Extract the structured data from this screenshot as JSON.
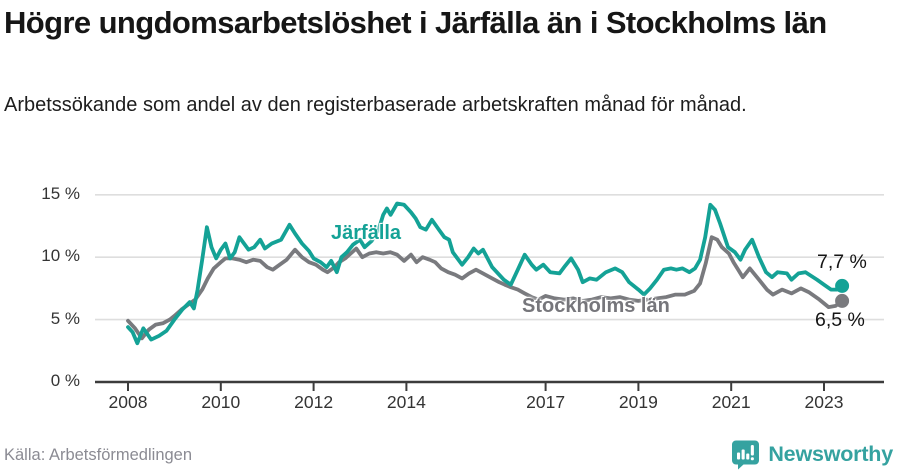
{
  "header": {
    "title": "Högre ungdomsarbetslöshet i Järfälla än i Stockholms län",
    "subtitle": "Arbetssökande som andel av den registerbaserade arbetskraften månad för månad."
  },
  "footer": {
    "source": "Källa: Arbetsförmedlingen",
    "logo_text": "Newsworthy",
    "logo_color": "#35a2a0"
  },
  "icons": {
    "logo_icon": "newsworthy-speech-bubble-bar-chart-icon"
  },
  "chart_data": {
    "type": "line",
    "title": "Högre ungdomsarbetslöshet i Järfälla än i Stockholms län",
    "unit": "%",
    "grid": "horizontal",
    "grid_color": "#dedede",
    "axis_color": "#3c3c3c",
    "x_axis": {
      "ticks": [
        2008,
        2010,
        2012,
        2014,
        2017,
        2019,
        2021,
        2023
      ],
      "range": [
        2007.3,
        2023.9
      ]
    },
    "y_axis": {
      "ticks": [
        0,
        5,
        10,
        15
      ],
      "tick_labels": [
        "0 %",
        "5 %",
        "10 %",
        "15 %"
      ],
      "range": [
        0,
        15.8
      ]
    },
    "series": [
      {
        "name": "Stockholms län",
        "color": "#797a7e",
        "end_label": "6,5 %",
        "points": [
          [
            2008.0,
            4.9
          ],
          [
            2008.15,
            4.3
          ],
          [
            2008.3,
            3.5
          ],
          [
            2008.45,
            4.2
          ],
          [
            2008.6,
            4.6
          ],
          [
            2008.75,
            4.7
          ],
          [
            2008.9,
            5.0
          ],
          [
            2009.0,
            5.3
          ],
          [
            2009.15,
            5.8
          ],
          [
            2009.3,
            6.2
          ],
          [
            2009.45,
            6.6
          ],
          [
            2009.6,
            7.4
          ],
          [
            2009.72,
            8.3
          ],
          [
            2009.85,
            9.1
          ],
          [
            2010.0,
            9.6
          ],
          [
            2010.1,
            9.9
          ],
          [
            2010.25,
            9.9
          ],
          [
            2010.4,
            9.8
          ],
          [
            2010.55,
            9.6
          ],
          [
            2010.7,
            9.8
          ],
          [
            2010.85,
            9.7
          ],
          [
            2011.0,
            9.2
          ],
          [
            2011.12,
            9.0
          ],
          [
            2011.27,
            9.4
          ],
          [
            2011.42,
            9.8
          ],
          [
            2011.6,
            10.6
          ],
          [
            2011.75,
            10.0
          ],
          [
            2011.9,
            9.6
          ],
          [
            2012.05,
            9.4
          ],
          [
            2012.2,
            9.0
          ],
          [
            2012.3,
            8.8
          ],
          [
            2012.45,
            9.2
          ],
          [
            2012.55,
            9.6
          ],
          [
            2012.68,
            9.9
          ],
          [
            2012.8,
            10.3
          ],
          [
            2012.92,
            10.7
          ],
          [
            2013.05,
            10.0
          ],
          [
            2013.2,
            10.3
          ],
          [
            2013.35,
            10.4
          ],
          [
            2013.5,
            10.3
          ],
          [
            2013.65,
            10.4
          ],
          [
            2013.8,
            10.2
          ],
          [
            2013.95,
            9.7
          ],
          [
            2014.1,
            10.2
          ],
          [
            2014.22,
            9.6
          ],
          [
            2014.35,
            10.0
          ],
          [
            2014.5,
            9.8
          ],
          [
            2014.62,
            9.6
          ],
          [
            2014.75,
            9.1
          ],
          [
            2014.9,
            8.8
          ],
          [
            2015.05,
            8.6
          ],
          [
            2015.2,
            8.3
          ],
          [
            2015.35,
            8.7
          ],
          [
            2015.5,
            9.0
          ],
          [
            2015.65,
            8.7
          ],
          [
            2015.85,
            8.3
          ],
          [
            2016.0,
            8.0
          ],
          [
            2016.12,
            7.8
          ],
          [
            2016.25,
            7.6
          ],
          [
            2016.4,
            7.4
          ],
          [
            2016.55,
            7.1
          ],
          [
            2016.7,
            6.8
          ],
          [
            2016.85,
            6.6
          ],
          [
            2017.0,
            6.9
          ],
          [
            2017.2,
            6.7
          ],
          [
            2017.4,
            6.6
          ],
          [
            2017.6,
            6.7
          ],
          [
            2017.8,
            6.5
          ],
          [
            2018.0,
            6.6
          ],
          [
            2018.2,
            6.8
          ],
          [
            2018.4,
            6.7
          ],
          [
            2018.6,
            6.8
          ],
          [
            2018.8,
            6.6
          ],
          [
            2019.0,
            6.5
          ],
          [
            2019.2,
            6.6
          ],
          [
            2019.4,
            6.7
          ],
          [
            2019.6,
            6.8
          ],
          [
            2019.8,
            7.0
          ],
          [
            2020.0,
            7.0
          ],
          [
            2020.2,
            7.3
          ],
          [
            2020.33,
            7.9
          ],
          [
            2020.45,
            9.5
          ],
          [
            2020.58,
            11.6
          ],
          [
            2020.7,
            11.4
          ],
          [
            2020.8,
            10.8
          ],
          [
            2020.95,
            10.3
          ],
          [
            2021.05,
            9.6
          ],
          [
            2021.15,
            9.0
          ],
          [
            2021.25,
            8.4
          ],
          [
            2021.4,
            9.1
          ],
          [
            2021.6,
            8.2
          ],
          [
            2021.77,
            7.4
          ],
          [
            2021.9,
            7.0
          ],
          [
            2022.1,
            7.4
          ],
          [
            2022.3,
            7.1
          ],
          [
            2022.5,
            7.5
          ],
          [
            2022.67,
            7.2
          ],
          [
            2022.9,
            6.6
          ],
          [
            2023.1,
            6.0
          ],
          [
            2023.25,
            6.1
          ],
          [
            2023.39,
            6.5
          ]
        ]
      },
      {
        "name": "Järfälla",
        "color": "#14a296",
        "end_label": "7,7 %",
        "points": [
          [
            2008.0,
            4.4
          ],
          [
            2008.1,
            4.0
          ],
          [
            2008.2,
            3.1
          ],
          [
            2008.33,
            4.3
          ],
          [
            2008.5,
            3.4
          ],
          [
            2008.67,
            3.7
          ],
          [
            2008.83,
            4.1
          ],
          [
            2009.0,
            5.0
          ],
          [
            2009.17,
            5.8
          ],
          [
            2009.33,
            6.4
          ],
          [
            2009.42,
            5.9
          ],
          [
            2009.5,
            7.4
          ],
          [
            2009.6,
            9.8
          ],
          [
            2009.7,
            12.4
          ],
          [
            2009.8,
            10.8
          ],
          [
            2009.9,
            9.9
          ],
          [
            2010.0,
            10.6
          ],
          [
            2010.1,
            11.1
          ],
          [
            2010.2,
            9.9
          ],
          [
            2010.3,
            10.4
          ],
          [
            2010.4,
            11.6
          ],
          [
            2010.5,
            11.1
          ],
          [
            2010.6,
            10.6
          ],
          [
            2010.72,
            10.8
          ],
          [
            2010.85,
            11.4
          ],
          [
            2010.95,
            10.7
          ],
          [
            2011.1,
            11.1
          ],
          [
            2011.3,
            11.4
          ],
          [
            2011.48,
            12.6
          ],
          [
            2011.6,
            11.9
          ],
          [
            2011.75,
            11.1
          ],
          [
            2011.9,
            10.5
          ],
          [
            2012.0,
            9.9
          ],
          [
            2012.15,
            9.6
          ],
          [
            2012.28,
            9.2
          ],
          [
            2012.38,
            9.7
          ],
          [
            2012.5,
            8.8
          ],
          [
            2012.6,
            10.0
          ],
          [
            2012.72,
            10.4
          ],
          [
            2012.85,
            11.0
          ],
          [
            2013.0,
            11.4
          ],
          [
            2013.1,
            10.8
          ],
          [
            2013.25,
            11.3
          ],
          [
            2013.4,
            12.2
          ],
          [
            2013.5,
            13.4
          ],
          [
            2013.58,
            13.9
          ],
          [
            2013.66,
            13.4
          ],
          [
            2013.8,
            14.3
          ],
          [
            2013.95,
            14.2
          ],
          [
            2014.1,
            13.6
          ],
          [
            2014.2,
            13.1
          ],
          [
            2014.3,
            12.4
          ],
          [
            2014.42,
            12.2
          ],
          [
            2014.55,
            13.0
          ],
          [
            2014.7,
            12.2
          ],
          [
            2014.82,
            11.6
          ],
          [
            2014.92,
            11.4
          ],
          [
            2015.0,
            10.4
          ],
          [
            2015.2,
            9.4
          ],
          [
            2015.33,
            10.0
          ],
          [
            2015.45,
            10.7
          ],
          [
            2015.55,
            10.3
          ],
          [
            2015.65,
            10.6
          ],
          [
            2015.85,
            9.2
          ],
          [
            2016.1,
            8.2
          ],
          [
            2016.25,
            7.8
          ],
          [
            2016.4,
            9.0
          ],
          [
            2016.55,
            10.2
          ],
          [
            2016.7,
            9.4
          ],
          [
            2016.8,
            9.0
          ],
          [
            2016.95,
            9.4
          ],
          [
            2017.1,
            8.8
          ],
          [
            2017.3,
            8.7
          ],
          [
            2017.42,
            9.3
          ],
          [
            2017.55,
            9.9
          ],
          [
            2017.7,
            9.0
          ],
          [
            2017.8,
            8.0
          ],
          [
            2017.95,
            8.3
          ],
          [
            2018.1,
            8.2
          ],
          [
            2018.3,
            8.8
          ],
          [
            2018.5,
            9.1
          ],
          [
            2018.65,
            8.8
          ],
          [
            2018.8,
            8.0
          ],
          [
            2019.0,
            7.4
          ],
          [
            2019.12,
            7.0
          ],
          [
            2019.25,
            7.5
          ],
          [
            2019.4,
            8.2
          ],
          [
            2019.55,
            9.0
          ],
          [
            2019.7,
            9.1
          ],
          [
            2019.82,
            9.0
          ],
          [
            2019.95,
            9.1
          ],
          [
            2020.1,
            8.8
          ],
          [
            2020.22,
            9.1
          ],
          [
            2020.33,
            9.8
          ],
          [
            2020.44,
            11.6
          ],
          [
            2020.55,
            14.2
          ],
          [
            2020.65,
            13.8
          ],
          [
            2020.76,
            12.7
          ],
          [
            2020.93,
            10.8
          ],
          [
            2021.08,
            10.4
          ],
          [
            2021.2,
            9.8
          ],
          [
            2021.3,
            10.6
          ],
          [
            2021.45,
            11.4
          ],
          [
            2021.6,
            10.0
          ],
          [
            2021.75,
            8.8
          ],
          [
            2021.88,
            8.4
          ],
          [
            2022.0,
            8.8
          ],
          [
            2022.2,
            8.7
          ],
          [
            2022.3,
            8.2
          ],
          [
            2022.45,
            8.7
          ],
          [
            2022.6,
            8.8
          ],
          [
            2022.85,
            8.2
          ],
          [
            2023.0,
            7.8
          ],
          [
            2023.15,
            7.4
          ],
          [
            2023.28,
            7.4
          ],
          [
            2023.39,
            7.7
          ]
        ]
      }
    ]
  }
}
